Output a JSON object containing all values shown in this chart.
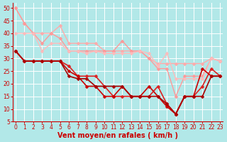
{
  "xlabel": "Vent moyen/en rafales ( km/h )",
  "background_color": "#b2e8e8",
  "grid_color": "#ffffff",
  "x": [
    0,
    1,
    2,
    3,
    4,
    5,
    6,
    7,
    8,
    9,
    10,
    11,
    12,
    13,
    14,
    15,
    16,
    17,
    18,
    19,
    20,
    21,
    22,
    23
  ],
  "series": [
    {
      "y": [
        50,
        44,
        40,
        40,
        40,
        43,
        36,
        36,
        36,
        36,
        33,
        33,
        33,
        33,
        33,
        30,
        28,
        28,
        28,
        28,
        28,
        28,
        30,
        29
      ],
      "color": "#ffaaaa",
      "lw": 1.0,
      "marker": "D",
      "ms": 2.5
    },
    {
      "y": [
        50,
        44,
        40,
        36,
        40,
        38,
        33,
        33,
        33,
        33,
        33,
        33,
        37,
        33,
        33,
        30,
        26,
        26,
        15,
        23,
        23,
        23,
        30,
        29
      ],
      "color": "#ff9999",
      "lw": 1.0,
      "marker": "D",
      "ms": 2.5
    },
    {
      "y": [
        40,
        40,
        40,
        33,
        36,
        36,
        33,
        33,
        32,
        33,
        32,
        32,
        32,
        32,
        33,
        32,
        27,
        32,
        22,
        22,
        22,
        22,
        30,
        29
      ],
      "color": "#ffbbbb",
      "lw": 1.0,
      "marker": "D",
      "ms": 2.5
    },
    {
      "y": [
        33,
        29,
        29,
        29,
        29,
        29,
        27,
        23,
        23,
        23,
        19,
        15,
        15,
        15,
        15,
        15,
        19,
        12,
        8,
        15,
        15,
        19,
        26,
        23
      ],
      "color": "#dd2222",
      "lw": 1.2,
      "marker": "D",
      "ms": 2.5
    },
    {
      "y": [
        33,
        29,
        29,
        29,
        29,
        29,
        25,
        23,
        19,
        19,
        15,
        15,
        19,
        15,
        15,
        19,
        15,
        11,
        8,
        15,
        15,
        26,
        23,
        23
      ],
      "color": "#cc0000",
      "lw": 1.2,
      "marker": "D",
      "ms": 2.5
    },
    {
      "y": [
        33,
        29,
        29,
        29,
        29,
        29,
        23,
        22,
        22,
        19,
        19,
        19,
        19,
        15,
        15,
        15,
        15,
        12,
        8,
        15,
        15,
        15,
        23,
        23
      ],
      "color": "#aa0000",
      "lw": 1.2,
      "marker": "D",
      "ms": 2.5
    }
  ],
  "ylim": [
    5,
    52
  ],
  "xlim": [
    -0.3,
    23.3
  ],
  "yticks": [
    5,
    10,
    15,
    20,
    25,
    30,
    35,
    40,
    45,
    50
  ],
  "xticks": [
    0,
    1,
    2,
    3,
    4,
    5,
    6,
    7,
    8,
    9,
    10,
    11,
    12,
    13,
    14,
    15,
    16,
    17,
    18,
    19,
    20,
    21,
    22,
    23
  ],
  "tick_fontsize": 5.5,
  "label_fontsize": 7
}
